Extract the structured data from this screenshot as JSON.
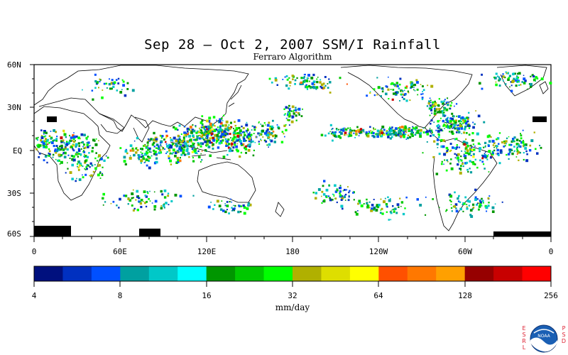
{
  "title": "Sep 28 – Oct 2, 2007 SSM/I Rainfall",
  "subtitle": "Ferraro Algorithm",
  "map": {
    "y_labels": [
      "60N",
      "30N",
      "EQ",
      "30S",
      "60S"
    ],
    "x_labels": [
      "0",
      "60E",
      "120E",
      "180",
      "120W",
      "60W",
      "0"
    ]
  },
  "colorbar": {
    "colors": [
      "#00107e",
      "#0030c0",
      "#0050ff",
      "#00a0a0",
      "#00c8c8",
      "#00ffff",
      "#009600",
      "#00c800",
      "#00ff00",
      "#b0b000",
      "#dede00",
      "#ffff00",
      "#ff5000",
      "#ff7800",
      "#ffa000",
      "#960000",
      "#c80000",
      "#ff0000"
    ],
    "tick_labels": [
      "4",
      "8",
      "16",
      "32",
      "64",
      "128",
      "256"
    ],
    "unit": "mm/day"
  },
  "logo": {
    "left_text": "ESRL",
    "right_text": "PSD",
    "center_text": "NOAA",
    "icon": "noaa-logo-icon"
  }
}
